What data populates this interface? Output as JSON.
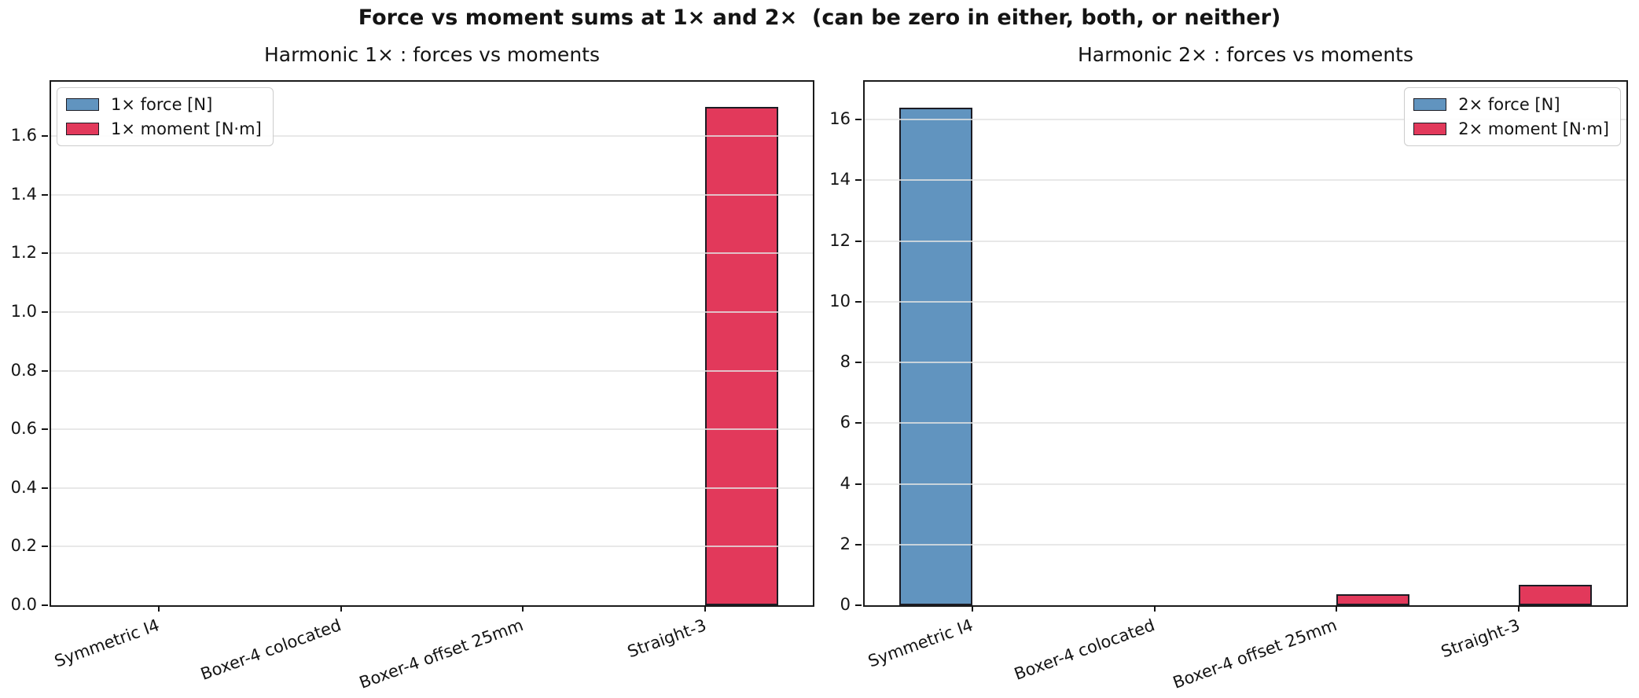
{
  "suptitle": "Force vs moment sums at 1× and 2×  (can be zero in either, both, or neither)",
  "colors": {
    "force_fill": "#6194bf",
    "moment_fill": "#e2395b",
    "bar_edge": "#1c1c24",
    "spine": "#1a1a1a",
    "grid": "#e2e2e2",
    "legend_border": "#cccccc",
    "text": "#141414"
  },
  "chart_data": [
    {
      "type": "bar",
      "title": "Harmonic 1× : forces vs moments",
      "categories": [
        "Symmetric I4",
        "Boxer-4 colocated",
        "Boxer-4 offset 25mm",
        "Straight-3"
      ],
      "series": [
        {
          "name": "1× force [N]",
          "color": "#6194bf",
          "values": [
            0,
            0,
            0,
            0
          ]
        },
        {
          "name": "1× moment [N·m]",
          "color": "#e2395b",
          "values": [
            0,
            0,
            0,
            1.7
          ]
        }
      ],
      "ylim": [
        0,
        1.785
      ],
      "yticks": [
        0,
        0.2,
        0.4,
        0.6,
        0.8,
        1.0,
        1.2,
        1.4,
        1.6
      ],
      "ytick_labels": [
        "0.0",
        "0.2",
        "0.4",
        "0.6",
        "0.8",
        "1.0",
        "1.2",
        "1.4",
        "1.6"
      ],
      "xlim": [
        -0.59,
        3.59
      ],
      "bar_width": 0.4,
      "xtick_rotation_deg": 20,
      "grid": true,
      "legend_position": "upper left"
    },
    {
      "type": "bar",
      "title": "Harmonic 2× : forces vs moments",
      "categories": [
        "Symmetric I4",
        "Boxer-4 colocated",
        "Boxer-4 offset 25mm",
        "Straight-3"
      ],
      "series": [
        {
          "name": "2× force [N]",
          "color": "#6194bf",
          "values": [
            16.4,
            0,
            0,
            0
          ]
        },
        {
          "name": "2× moment [N·m]",
          "color": "#e2395b",
          "values": [
            0,
            0,
            0.36,
            0.67
          ]
        }
      ],
      "ylim": [
        0,
        17.25
      ],
      "yticks": [
        0,
        2,
        4,
        6,
        8,
        10,
        12,
        14,
        16
      ],
      "ytick_labels": [
        "0",
        "2",
        "4",
        "6",
        "8",
        "10",
        "12",
        "14",
        "16"
      ],
      "xlim": [
        -0.59,
        3.59
      ],
      "bar_width": 0.4,
      "xtick_rotation_deg": 20,
      "grid": true,
      "legend_position": "upper right"
    }
  ]
}
